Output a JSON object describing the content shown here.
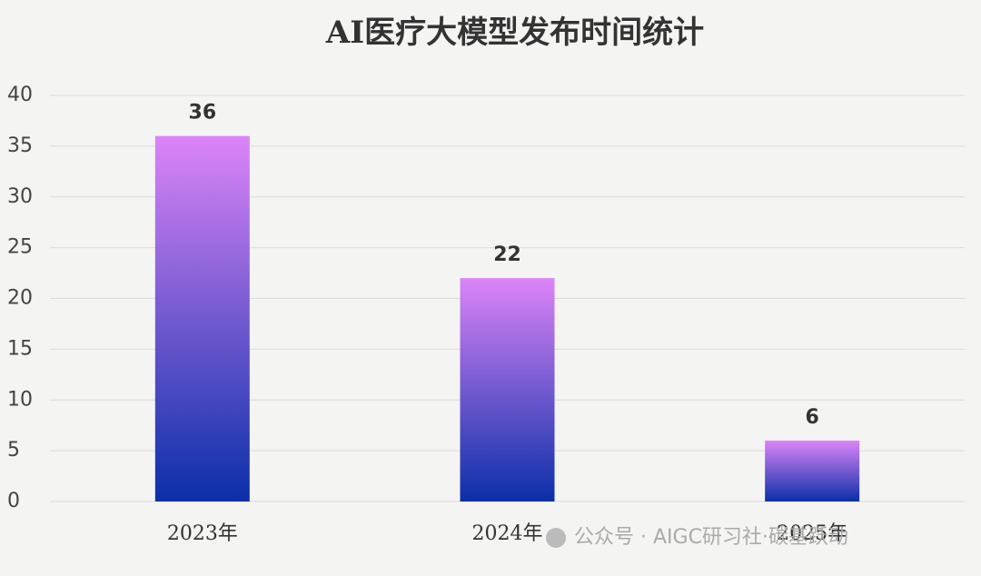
{
  "chart_data": {
    "type": "bar",
    "title": "AI医疗大模型发布时间统计",
    "categories": [
      "2023年",
      "2024年",
      "2025年"
    ],
    "values": [
      36,
      22,
      6
    ],
    "gradient_colors": [
      "#dc84f8",
      "#0a2fa8"
    ],
    "ylim": [
      0,
      40
    ],
    "yticks": [
      0,
      5,
      10,
      15,
      20,
      25,
      30,
      35,
      40
    ],
    "grid": true
  },
  "watermark": "公众号 · AIGC研习社·碳基跃动"
}
